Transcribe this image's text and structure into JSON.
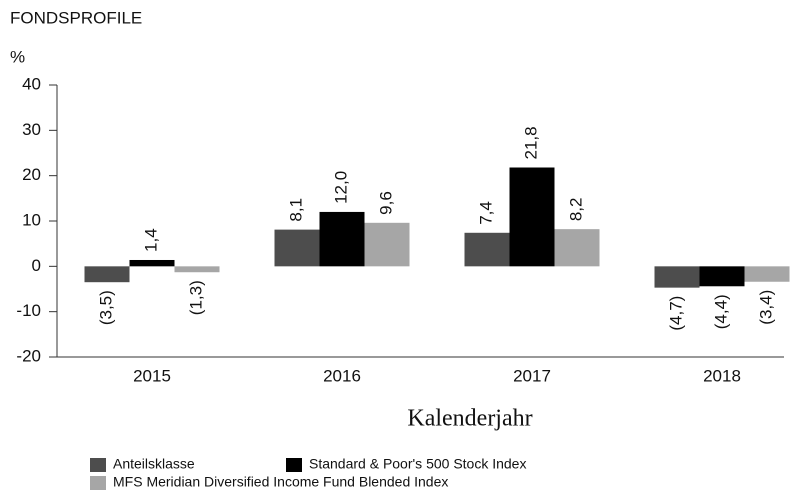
{
  "chart_data": {
    "type": "bar",
    "title": "FONDSPROFILE",
    "y_label": "%",
    "x_label": "Kalenderjahr",
    "categories": [
      "2015",
      "2016",
      "2017",
      "2018"
    ],
    "series": [
      {
        "name": "Anteilsklasse",
        "color": "#4d4d4d",
        "values": [
          -3.5,
          8.1,
          7.4,
          -4.7
        ],
        "value_labels": [
          "(3,5)",
          "8,1",
          "7,4",
          "(4,7)"
        ]
      },
      {
        "name": "Standard & Poor's 500 Stock Index",
        "color": "#000000",
        "values": [
          1.4,
          12.0,
          21.8,
          -4.4
        ],
        "value_labels": [
          "1,4",
          "12,0",
          "21,8",
          "(4,4)"
        ]
      },
      {
        "name": "MFS Meridian Diversified Income Fund Blended Index",
        "color": "#a6a6a6",
        "values": [
          -1.3,
          9.6,
          8.2,
          -3.4
        ],
        "value_labels": [
          "(1,3)",
          "9,6",
          "8,2",
          "(3,4)"
        ]
      }
    ],
    "ylim": [
      -20,
      40
    ],
    "yticks": [
      -20,
      -10,
      0,
      10,
      20,
      30,
      40
    ]
  }
}
